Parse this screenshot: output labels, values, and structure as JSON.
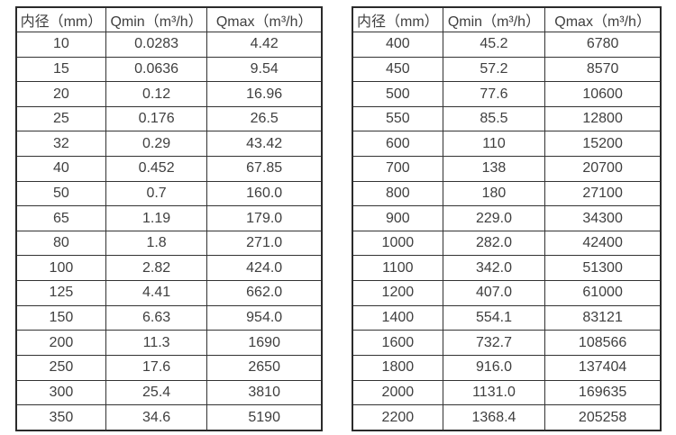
{
  "page": {
    "background_color": "#ffffff",
    "text_color": "#3f3f3f",
    "border_color": "#333333"
  },
  "tables": [
    {
      "name": "left",
      "headers": [
        "内径（mm）",
        "Qmin（m³/h）",
        "Qmax（m³/h）"
      ],
      "rows": [
        [
          "10",
          "0.0283",
          "4.42"
        ],
        [
          "15",
          "0.0636",
          "9.54"
        ],
        [
          "20",
          "0.12",
          "16.96"
        ],
        [
          "25",
          "0.176",
          "26.5"
        ],
        [
          "32",
          "0.29",
          "43.42"
        ],
        [
          "40",
          "0.452",
          "67.85"
        ],
        [
          "50",
          "0.7",
          "160.0"
        ],
        [
          "65",
          "1.19",
          "179.0"
        ],
        [
          "80",
          "1.8",
          "271.0"
        ],
        [
          "100",
          "2.82",
          "424.0"
        ],
        [
          "125",
          "4.41",
          "662.0"
        ],
        [
          "150",
          "6.63",
          "954.0"
        ],
        [
          "200",
          "11.3",
          "1690"
        ],
        [
          "250",
          "17.6",
          "2650"
        ],
        [
          "300",
          "25.4",
          "3810"
        ],
        [
          "350",
          "34.6",
          "5190"
        ]
      ]
    },
    {
      "name": "right",
      "headers": [
        "内径（mm）",
        "Qmin（m³/h）",
        "Qmax（m³/h）"
      ],
      "rows": [
        [
          "400",
          "45.2",
          "6780"
        ],
        [
          "450",
          "57.2",
          "8570"
        ],
        [
          "500",
          "77.6",
          "10600"
        ],
        [
          "550",
          "85.5",
          "12800"
        ],
        [
          "600",
          "110",
          "15200"
        ],
        [
          "700",
          "138",
          "20700"
        ],
        [
          "800",
          "180",
          "27100"
        ],
        [
          "900",
          "229.0",
          "34300"
        ],
        [
          "1000",
          "282.0",
          "42400"
        ],
        [
          "1100",
          "342.0",
          "51300"
        ],
        [
          "1200",
          "407.0",
          "61000"
        ],
        [
          "1400",
          "554.1",
          "83121"
        ],
        [
          "1600",
          "732.7",
          "108566"
        ],
        [
          "1800",
          "916.0",
          "137404"
        ],
        [
          "2000",
          "1131.0",
          "169635"
        ],
        [
          "2200",
          "1368.4",
          "205258"
        ]
      ]
    }
  ]
}
